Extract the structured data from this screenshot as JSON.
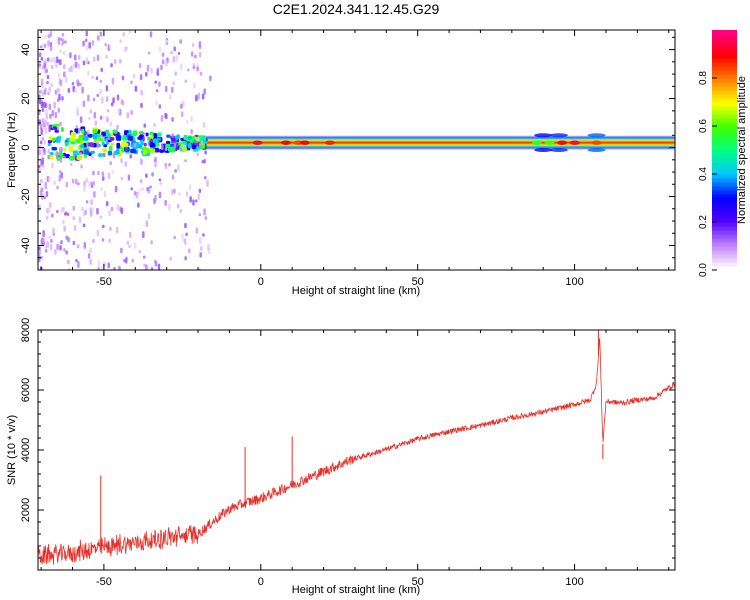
{
  "title": "C2E1.2024.341.12.45.G29",
  "chart_data": [
    {
      "type": "heatmap",
      "title": "C2E1.2024.341.12.45.G29",
      "xlabel": "Height of straight line (km)",
      "ylabel": "Frequency (Hz)",
      "xlim": [
        -71,
        132
      ],
      "ylim": [
        -50,
        48
      ],
      "xticks": [
        -50,
        0,
        50,
        100
      ],
      "yticks": [
        -40,
        -20,
        0,
        20,
        40
      ],
      "x_tick_labels": [
        "-50",
        "0",
        "50",
        "100"
      ],
      "y_tick_labels": [
        "-40",
        "-20",
        "0",
        "20",
        "40"
      ],
      "grid": false,
      "colorbar": {
        "label": "Normalized spectral amplitude",
        "range": [
          0,
          1
        ],
        "ticks": [
          0,
          0.2,
          0.4,
          0.6,
          0.8
        ],
        "tick_labels": [
          "0.0",
          "0.2",
          "0.4",
          "0.6",
          "0.8"
        ],
        "colors": [
          "#ffffff",
          "#c080ff",
          "#5000ff",
          "#0000ff",
          "#00c8ff",
          "#00ff80",
          "#40ff00",
          "#ffff00",
          "#ff8000",
          "#ff0000",
          "#ff0080"
        ]
      },
      "description_values": {
        "band_center_hz": 2,
        "band_halfwidth_hz": 2.5,
        "band_peak_amplitude": 0.9,
        "noise_region_km": [
          -71,
          -20
        ]
      }
    },
    {
      "type": "line",
      "xlabel": "Height of straight line (km)",
      "ylabel": "SNR (10 * v/v)",
      "xlim": [
        -71,
        132
      ],
      "ylim": [
        0,
        8000
      ],
      "xticks": [
        -50,
        0,
        50,
        100
      ],
      "yticks": [
        2000,
        4000,
        6000,
        8000
      ],
      "x_tick_labels": [
        "-50",
        "0",
        "50",
        "100"
      ],
      "y_tick_labels": [
        "2000",
        "4000",
        "6000",
        "8000"
      ],
      "grid": false,
      "color": "#e8302a",
      "series": [
        {
          "x": [
            -71,
            -60,
            -50,
            -40,
            -30,
            -20,
            -15,
            -10,
            -5,
            0,
            10,
            20,
            30,
            40,
            50,
            60,
            70,
            80,
            90,
            100,
            105,
            107,
            108,
            109,
            110,
            115,
            120,
            125,
            132
          ],
          "y": [
            400,
            500,
            700,
            850,
            1000,
            1150,
            1600,
            2000,
            2200,
            2350,
            2800,
            3250,
            3700,
            4000,
            4350,
            4600,
            4800,
            5050,
            5250,
            5500,
            5650,
            6200,
            7800,
            4200,
            5600,
            5550,
            5650,
            5700,
            6200
          ]
        }
      ],
      "spikes": [
        {
          "x": -51,
          "y": 3150
        },
        {
          "x": -5,
          "y": 4100
        },
        {
          "x": 10,
          "y": 4450
        },
        {
          "x": 107.6,
          "y": 8000
        },
        {
          "x": 109,
          "y": 3700
        }
      ]
    }
  ]
}
